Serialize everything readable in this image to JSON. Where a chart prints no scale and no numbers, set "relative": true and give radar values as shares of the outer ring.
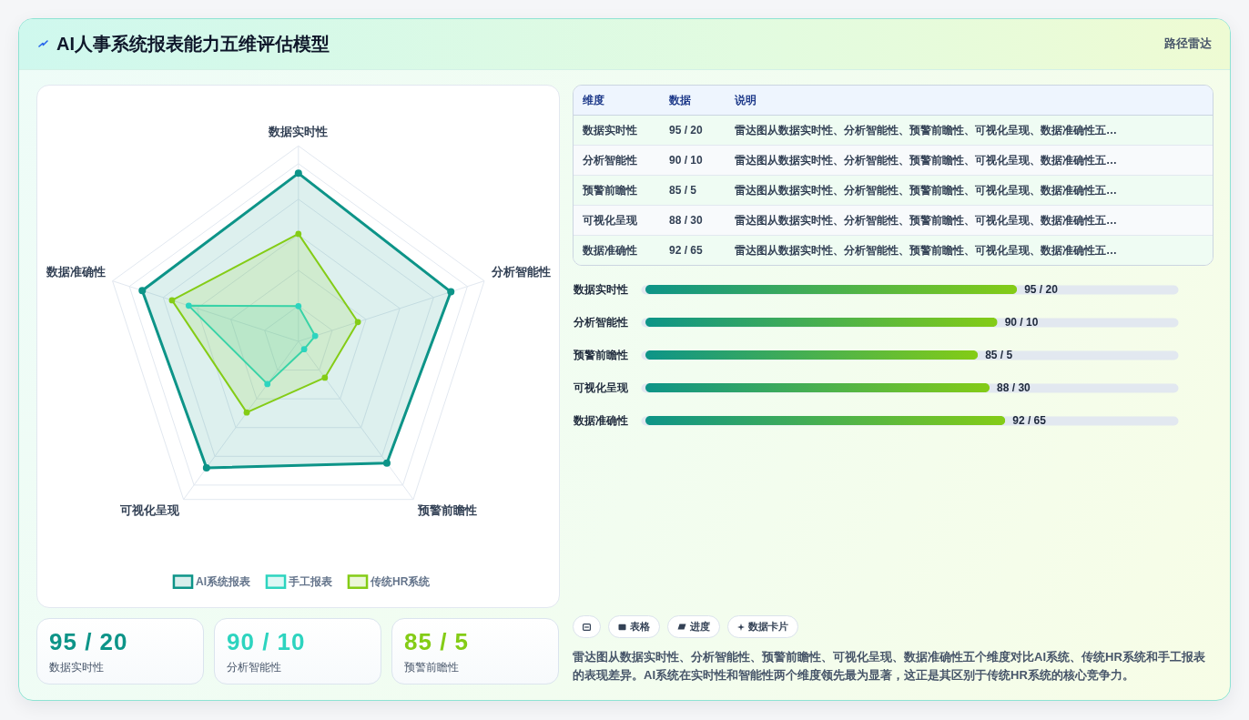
{
  "chart_data": [
    {
      "type": "radar",
      "title": "AI人事系统报表能力五维评估模型",
      "categories": [
        "数据实时性",
        "分析智能性",
        "预警前瞻性",
        "可视化呈现",
        "数据准确性"
      ],
      "relative": true,
      "series": [
        {
          "name": "AI系统报表",
          "color": "#0d9488",
          "values": [
            0.86,
            0.82,
            0.77,
            0.8,
            0.84
          ]
        },
        {
          "name": "手工报表",
          "color": "#2dd4bf",
          "values": [
            0.18,
            0.09,
            0.05,
            0.27,
            0.59
          ]
        },
        {
          "name": "传统HR系统",
          "color": "#84cc16",
          "values": [
            0.55,
            0.32,
            0.23,
            0.45,
            0.68
          ]
        }
      ],
      "grid": true,
      "legend": "bottom",
      "marker": "circle",
      "tick_labels": "x"
    },
    {
      "type": "bar",
      "orientation": "horizontal",
      "categories": [
        "数据实时性",
        "分析智能性",
        "预警前瞻性",
        "可视化呈现",
        "数据准确性"
      ],
      "values": [
        95,
        90,
        85,
        88,
        92
      ],
      "value_labels": [
        "95 / 20",
        "90 / 10",
        "85 / 5",
        "88 / 30",
        "92 / 65"
      ],
      "color": "#0d9488",
      "xlim": [
        0,
        135
      ],
      "grid": "y",
      "tick_labels": "y"
    },
    {
      "type": "other",
      "subtitle": "路径雷达",
      "categories": [
        "数据实时性",
        "分析智能性",
        "预警前瞻性",
        "可视化呈现",
        "数据准确性"
      ],
      "value_labels": [
        "95 / 20",
        "90 / 10",
        "85 / 5",
        "88 / 30",
        "92 / 65"
      ],
      "annotations": [
        "维度",
        "数据",
        "说明",
        "雷达图从数据实时性、分析智能性、预警前瞻性、可视化呈现、数据准确性五…",
        "雷达图从数据实时性、分析智能性、预警前瞻性、可视化呈现、数据准确性五…",
        "雷达图从数据实时性、分析智能性、预警前瞻性、可视化呈现、数据准确性五…",
        "雷达图从数据实时性、分析智能性、预警前瞻性、可视化呈现、数据准确性五…",
        "雷达图从数据实时性、分析智能性、预警前瞻性、可视化呈现、数据准确性五…"
      ]
    },
    {
      "type": "other",
      "categories": [
        "数据实时性",
        "分析智能性",
        "预警前瞻性"
      ],
      "value_labels": [
        "95 / 20",
        "90 / 10",
        "85 / 5"
      ]
    },
    {
      "type": "other",
      "categories": [
        null,
        "表格",
        "进度",
        "数据卡片"
      ],
      "annotations": [
        "雷达图从数据实时性、分析智能性、预警前瞻性、可视化呈现、数据准确性五个维度对比AI系统、传统HR系统和手工报表的表现差异。AI系统在实时性和智能性两个维度领先最为显著，这正是其区别于传统HR系统的核心竞争力。"
      ]
    }
  ]
}
